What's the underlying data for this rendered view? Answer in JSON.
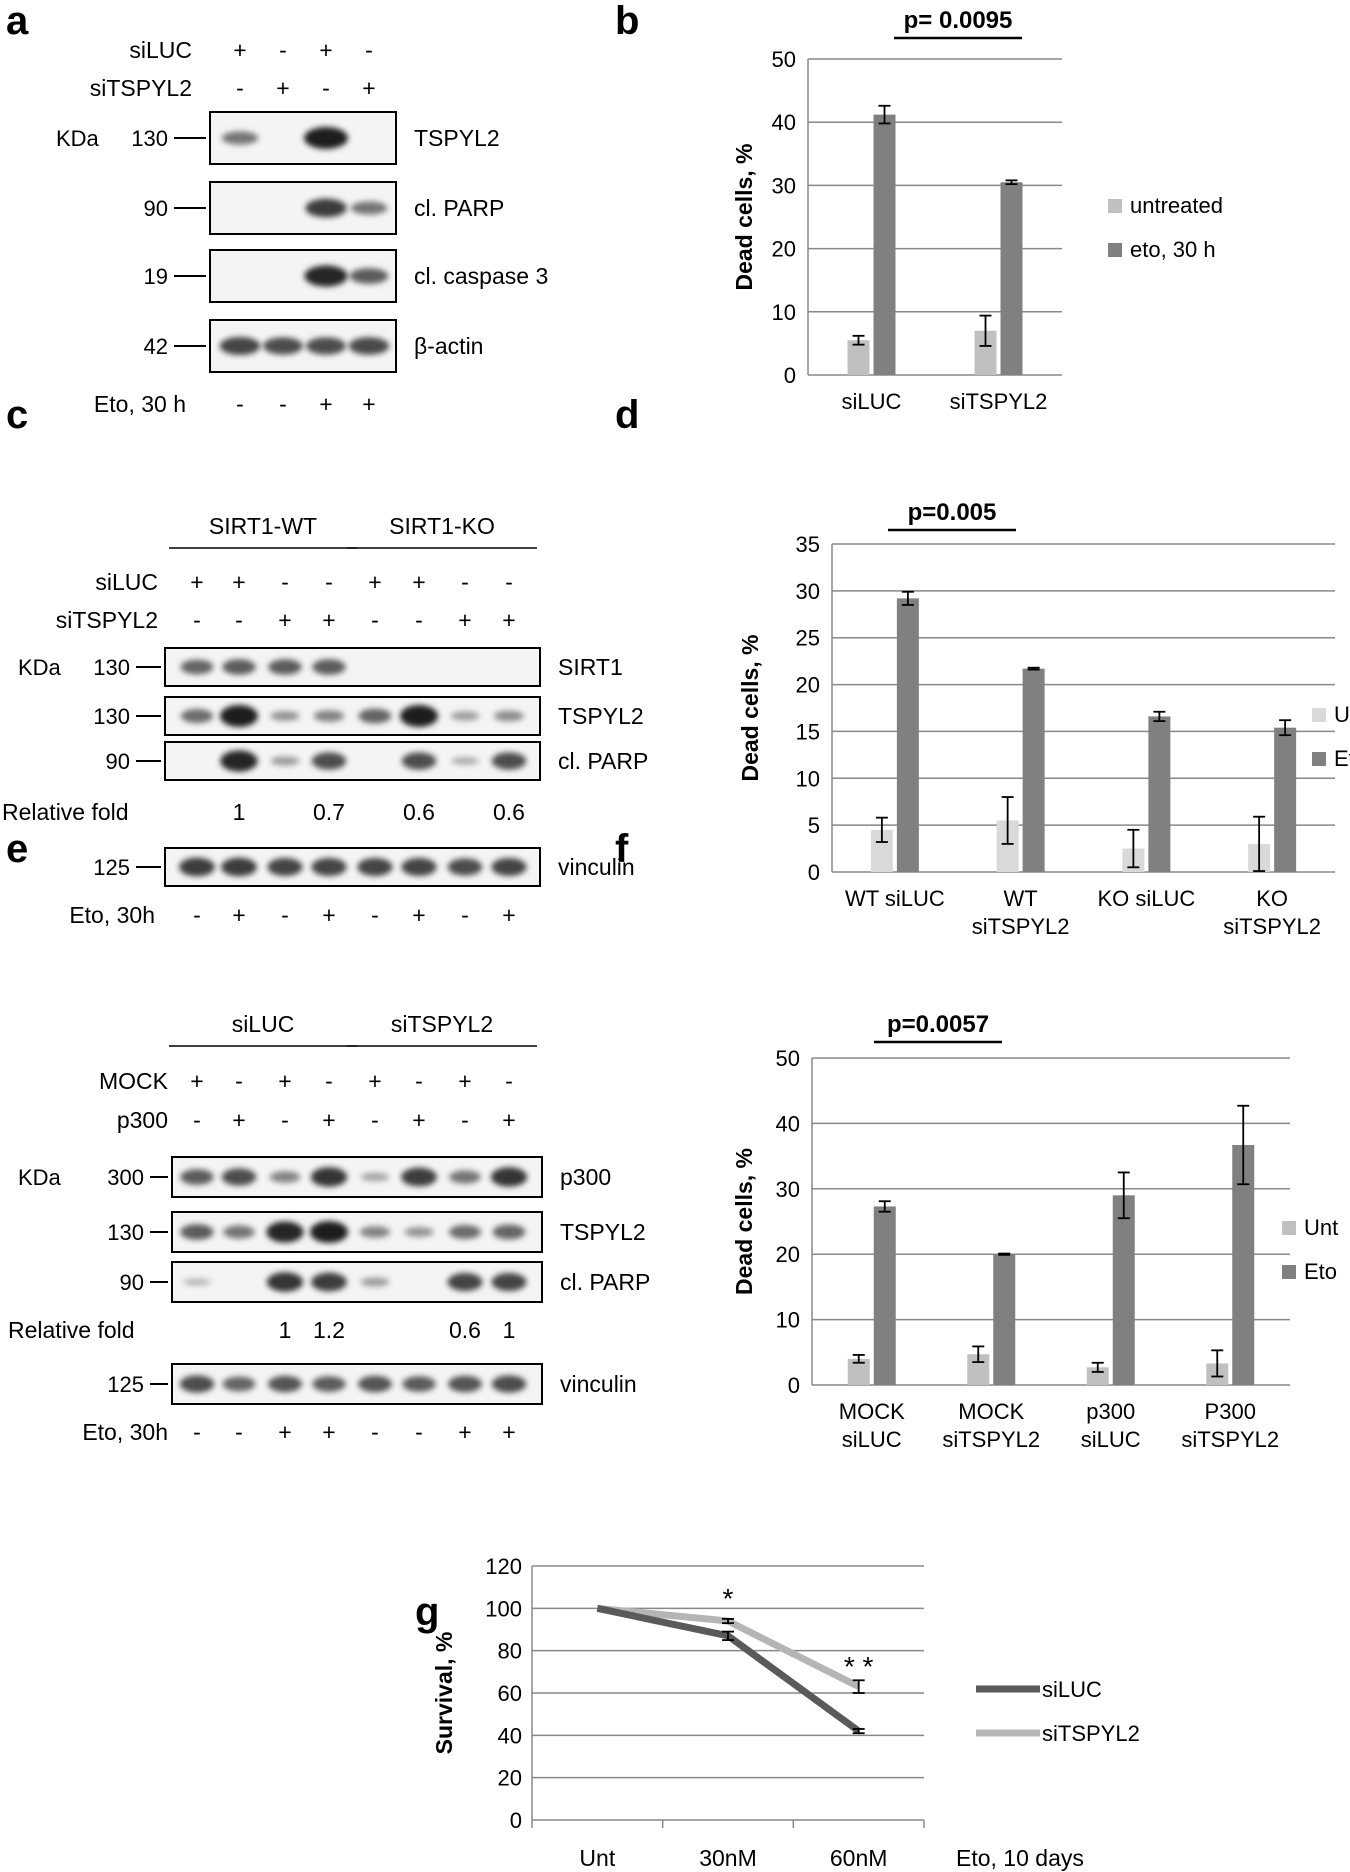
{
  "colors": {
    "light_gray": "#c0c0c0",
    "dark_gray": "#808080",
    "grid": "#888888",
    "line_siLUC": "#5a5a5a",
    "line_siTSPYL2": "#b5b5b5",
    "blot_frame": "#000000",
    "blot_bg": "#f4f4f4",
    "band": "#111111"
  },
  "panels": {
    "a": {
      "letter": "a",
      "kda_label": "KDa",
      "header_rows": [
        {
          "label": "siLUC",
          "signs": [
            "+",
            "-",
            "+",
            "-"
          ]
        },
        {
          "label": "siTSPYL2",
          "signs": [
            "-",
            "+",
            "-",
            "+"
          ]
        }
      ],
      "blots": [
        {
          "kda": "130",
          "name": "TSPYL2",
          "bands": [
            0.45,
            0,
            1.0,
            0
          ]
        },
        {
          "kda": "90",
          "name": "cl. PARP",
          "bands": [
            0,
            0,
            0.8,
            0.45
          ]
        },
        {
          "kda": "19",
          "name": "cl. caspase 3",
          "bands": [
            0,
            0,
            0.95,
            0.6
          ]
        },
        {
          "kda": "42",
          "name": "β-actin",
          "bands": [
            0.75,
            0.7,
            0.7,
            0.72
          ]
        }
      ],
      "footer": {
        "label": "Eto, 30 h",
        "signs": [
          "-",
          "-",
          "+",
          "+"
        ]
      }
    },
    "c": {
      "letter": "c",
      "kda_label": "KDa",
      "groups": [
        "SIRT1-WT",
        "SIRT1-KO"
      ],
      "header_rows": [
        {
          "label": "siLUC",
          "signs": [
            "+",
            "+",
            "-",
            "-",
            "+",
            "+",
            "-",
            "-"
          ]
        },
        {
          "label": "siTSPYL2",
          "signs": [
            "-",
            "-",
            "+",
            "+",
            "-",
            "-",
            "+",
            "+"
          ]
        }
      ],
      "blots": [
        {
          "kda": "130",
          "name": "SIRT1",
          "bands": [
            0.55,
            0.6,
            0.6,
            0.6,
            0,
            0,
            0,
            0
          ]
        },
        {
          "kda": "130",
          "name": "TSPYL2",
          "bands": [
            0.5,
            1.0,
            0.25,
            0.35,
            0.55,
            1.0,
            0.2,
            0.3
          ]
        },
        {
          "kda": "90",
          "name": "cl.  PARP",
          "bands": [
            0,
            0.95,
            0.2,
            0.7,
            0,
            0.7,
            0.1,
            0.7
          ]
        }
      ],
      "relative_fold_label": "Relative fold",
      "relative_fold": [
        "",
        "1",
        "",
        "0.7",
        "",
        "0.6",
        "",
        "0.6"
      ],
      "loading": {
        "kda": "125",
        "name": "vinculin",
        "bands": [
          0.8,
          0.8,
          0.75,
          0.75,
          0.75,
          0.75,
          0.7,
          0.75
        ]
      },
      "footer": {
        "label": "Eto, 30h",
        "signs": [
          "-",
          "+",
          "-",
          "+",
          "-",
          "+",
          "-",
          "+"
        ]
      }
    },
    "e": {
      "letter": "e",
      "kda_label": "KDa",
      "groups": [
        "siLUC",
        "siTSPYL2"
      ],
      "header_rows": [
        {
          "label": "MOCK",
          "signs": [
            "+",
            "-",
            "+",
            "-",
            "+",
            "-",
            "+",
            "-"
          ]
        },
        {
          "label": "p300",
          "signs": [
            "-",
            "+",
            "-",
            "+",
            "-",
            "+",
            "-",
            "+"
          ]
        }
      ],
      "blots": [
        {
          "kda": "300",
          "name": "p300",
          "bands": [
            0.6,
            0.7,
            0.35,
            0.85,
            0.15,
            0.8,
            0.45,
            0.85
          ]
        },
        {
          "kda": "130",
          "name": "TSPYL2",
          "bands": [
            0.6,
            0.45,
            0.95,
            1.0,
            0.35,
            0.25,
            0.5,
            0.55
          ]
        },
        {
          "kda": "90",
          "name": "cl.  PARP",
          "bands": [
            0.05,
            0,
            0.85,
            0.8,
            0.2,
            0,
            0.75,
            0.75
          ]
        }
      ],
      "relative_fold_label": "Relative fold",
      "relative_fold": [
        "",
        "",
        "1",
        "1.2",
        "",
        "",
        "0.6",
        "1"
      ],
      "loading": {
        "kda": "125",
        "name": "vinculin",
        "bands": [
          0.7,
          0.55,
          0.65,
          0.6,
          0.65,
          0.6,
          0.65,
          0.7
        ]
      },
      "footer": {
        "label": "Eto, 30h",
        "signs": [
          "-",
          "-",
          "+",
          "+",
          "-",
          "-",
          "+",
          "+"
        ]
      }
    },
    "b": {
      "letter": "b",
      "pvalue": "p= 0.0095"
    },
    "d": {
      "letter": "d",
      "pvalue": "p=0.005"
    },
    "f": {
      "letter": "f",
      "pvalue": "p=0.0057"
    },
    "g": {
      "letter": "g",
      "asterisk_30": "*",
      "asterisk_60": "* *",
      "x_extra_label": "Eto, 10 days"
    }
  },
  "chart_data": [
    {
      "id": "b",
      "type": "bar",
      "ylabel": "Dead cells, %",
      "ylim": [
        0,
        50
      ],
      "yticks": [
        0,
        10,
        20,
        30,
        40,
        50
      ],
      "grid": true,
      "legend_position": "right",
      "categories": [
        [
          "siLUC"
        ],
        [
          "siTSPYL2"
        ]
      ],
      "series": [
        {
          "name": "untreated",
          "color": "#c0c0c0",
          "values": [
            5.5,
            7.0
          ],
          "errors": [
            0.7,
            2.4
          ]
        },
        {
          "name": "eto, 30 h",
          "color": "#808080",
          "values": [
            41.2,
            30.5
          ],
          "errors": [
            1.4,
            0.3
          ]
        }
      ]
    },
    {
      "id": "d",
      "type": "bar",
      "ylabel": "Dead cells, %",
      "ylim": [
        0,
        35
      ],
      "yticks": [
        0,
        5,
        10,
        15,
        20,
        25,
        30,
        35
      ],
      "grid": true,
      "legend_position": "right",
      "categories": [
        [
          "WT siLUC"
        ],
        [
          "WT",
          "siTSPYL2"
        ],
        [
          "KO siLUC"
        ],
        [
          "KO",
          "siTSPYL2"
        ]
      ],
      "series": [
        {
          "name": "Unt",
          "color": "#d9d9d9",
          "values": [
            4.5,
            5.5,
            2.5,
            3.0
          ],
          "errors": [
            1.3,
            2.5,
            2.0,
            2.9
          ]
        },
        {
          "name": "Eto",
          "color": "#808080",
          "values": [
            29.2,
            21.7,
            16.6,
            15.4
          ],
          "errors": [
            0.7,
            0.1,
            0.5,
            0.8
          ]
        }
      ]
    },
    {
      "id": "f",
      "type": "bar",
      "ylabel": "Dead cells, %",
      "ylim": [
        0,
        50
      ],
      "yticks": [
        0,
        10,
        20,
        30,
        40,
        50
      ],
      "grid": true,
      "legend_position": "right",
      "categories": [
        [
          "MOCK",
          "siLUC"
        ],
        [
          "MOCK",
          "siTSPYL2"
        ],
        [
          "p300",
          "siLUC"
        ],
        [
          "P300",
          "siTSPYL2"
        ]
      ],
      "series": [
        {
          "name": "Unt",
          "color": "#c0c0c0",
          "values": [
            4.0,
            4.7,
            2.7,
            3.3
          ],
          "errors": [
            0.6,
            1.2,
            0.7,
            2.0
          ]
        },
        {
          "name": "Eto",
          "color": "#808080",
          "values": [
            27.3,
            20.0,
            29.0,
            36.7
          ],
          "errors": [
            0.8,
            0.1,
            3.5,
            6.0
          ]
        }
      ]
    },
    {
      "id": "g",
      "type": "line",
      "ylabel": "Survival, %",
      "ylim": [
        0,
        120
      ],
      "yticks": [
        0,
        20,
        40,
        60,
        80,
        100,
        120
      ],
      "grid": true,
      "legend_position": "right",
      "categories": [
        "Unt",
        "30nM",
        "60nM"
      ],
      "series": [
        {
          "name": "siLUC",
          "color": "#5a5a5a",
          "values": [
            100,
            87,
            42
          ],
          "errors": [
            0,
            2,
            1
          ]
        },
        {
          "name": "siTSPYL2",
          "color": "#b5b5b5",
          "values": [
            100,
            94,
            63
          ],
          "errors": [
            0,
            1,
            3
          ]
        }
      ]
    }
  ]
}
